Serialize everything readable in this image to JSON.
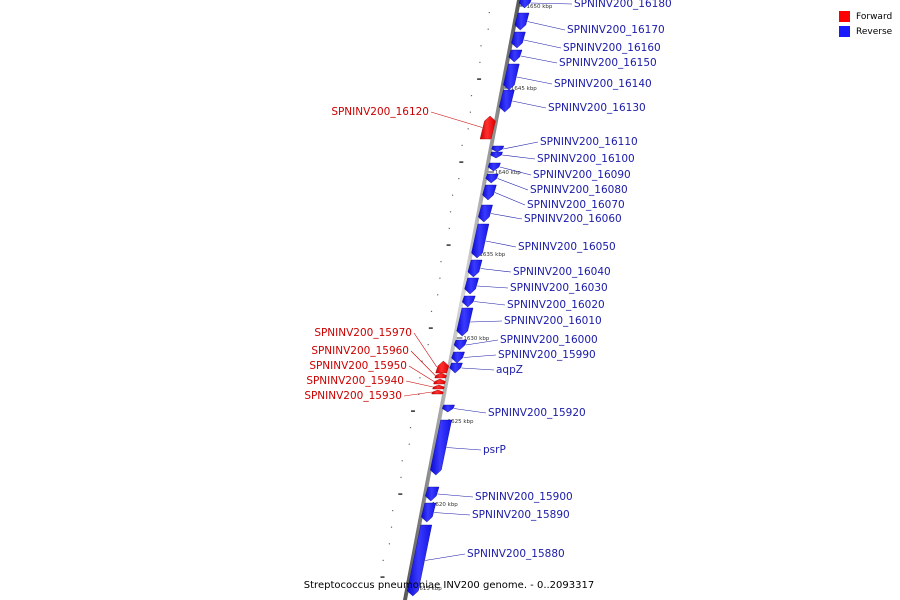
{
  "title": "Streptococcus pneumoniae INV200 genome. - 0..2093317",
  "colors": {
    "forward": "#ff0000",
    "reverse": "#1a1aff",
    "forward_label": "#cc0000",
    "reverse_label": "#1a1aa8",
    "backbone": "#888888"
  },
  "legend": [
    {
      "label": "Forward",
      "color": "#ff0000"
    },
    {
      "label": "Reverse",
      "color": "#1a1aff"
    }
  ],
  "kbp_ticks": [
    "1650 kbp",
    "1645 kbp",
    "1640 kbp",
    "1635 kbp",
    "1630 kbp",
    "1625 kbp",
    "1620 kbp",
    "1615 kbp"
  ],
  "genes": [
    {
      "label": "SPNINV200_16180",
      "strand": "reverse"
    },
    {
      "label": "SPNINV200_16170",
      "strand": "reverse"
    },
    {
      "label": "SPNINV200_16160",
      "strand": "reverse"
    },
    {
      "label": "SPNINV200_16150",
      "strand": "reverse"
    },
    {
      "label": "SPNINV200_16140",
      "strand": "reverse"
    },
    {
      "label": "SPNINV200_16130",
      "strand": "reverse"
    },
    {
      "label": "SPNINV200_16120",
      "strand": "forward"
    },
    {
      "label": "SPNINV200_16110",
      "strand": "reverse"
    },
    {
      "label": "SPNINV200_16100",
      "strand": "reverse"
    },
    {
      "label": "SPNINV200_16090",
      "strand": "reverse"
    },
    {
      "label": "SPNINV200_16080",
      "strand": "reverse"
    },
    {
      "label": "SPNINV200_16070",
      "strand": "reverse"
    },
    {
      "label": "SPNINV200_16060",
      "strand": "reverse"
    },
    {
      "label": "SPNINV200_16050",
      "strand": "reverse"
    },
    {
      "label": "SPNINV200_16040",
      "strand": "reverse"
    },
    {
      "label": "SPNINV200_16030",
      "strand": "reverse"
    },
    {
      "label": "SPNINV200_16020",
      "strand": "reverse"
    },
    {
      "label": "SPNINV200_16010",
      "strand": "reverse"
    },
    {
      "label": "SPNINV200_16000",
      "strand": "reverse"
    },
    {
      "label": "SPNINV200_15990",
      "strand": "reverse"
    },
    {
      "label": "aqpZ",
      "strand": "reverse"
    },
    {
      "label": "SPNINV200_15970",
      "strand": "forward"
    },
    {
      "label": "SPNINV200_15960",
      "strand": "forward"
    },
    {
      "label": "SPNINV200_15950",
      "strand": "forward"
    },
    {
      "label": "SPNINV200_15940",
      "strand": "forward"
    },
    {
      "label": "SPNINV200_15930",
      "strand": "forward"
    },
    {
      "label": "SPNINV200_15920",
      "strand": "reverse"
    },
    {
      "label": "psrP",
      "strand": "reverse"
    },
    {
      "label": "SPNINV200_15900",
      "strand": "reverse"
    },
    {
      "label": "SPNINV200_15890",
      "strand": "reverse"
    },
    {
      "label": "SPNINV200_15880",
      "strand": "reverse"
    }
  ]
}
